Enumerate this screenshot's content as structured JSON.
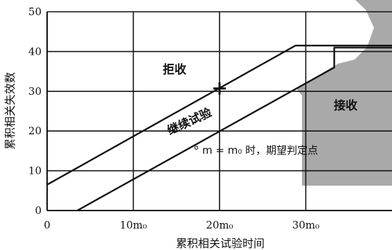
{
  "chart_data": {
    "type": "line",
    "xlabel": "累积相关试验时间",
    "ylabel": "累积相关失效数",
    "xlim": [
      0,
      40
    ],
    "ylim": [
      0,
      50
    ],
    "x_ticks": [
      {
        "value": 0,
        "label": "0"
      },
      {
        "value": 10,
        "label": "10m₀"
      },
      {
        "value": 20,
        "label": "20m₀"
      },
      {
        "value": 30,
        "label": "30m₀"
      }
    ],
    "y_ticks": [
      0,
      10,
      20,
      30,
      40,
      50
    ],
    "grid": true,
    "series": [
      {
        "points": [
          [
            0,
            6.5
          ],
          [
            28.8,
            41.5
          ],
          [
            40,
            41.5
          ]
        ]
      },
      {
        "points": [
          [
            3.5,
            0
          ],
          [
            33.3,
            36
          ],
          [
            33.3,
            41
          ],
          [
            40,
            41
          ]
        ]
      }
    ],
    "regions": {
      "reject": "拒收",
      "continue": "继续试验",
      "accept": "接收"
    },
    "annotation": "m = m₀ 时，期望判定点",
    "expected_point": [
      20,
      30.7
    ],
    "colors": {
      "line": "#111111",
      "grid": "#111111",
      "accept_shading": "#a9a9a9"
    }
  }
}
